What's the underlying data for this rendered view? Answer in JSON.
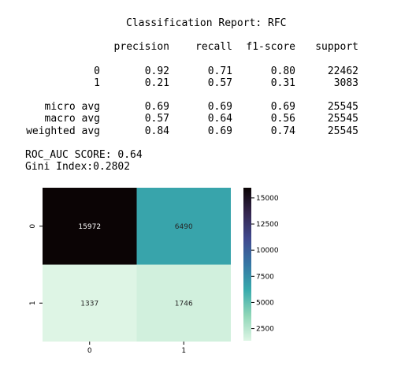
{
  "report": {
    "title": "Classification Report: RFC",
    "columns": [
      "precision",
      "recall",
      "f1-score",
      "support"
    ],
    "rows": [
      {
        "label": "0",
        "cells": [
          "0.92",
          "0.71",
          "0.80",
          "22462"
        ]
      },
      {
        "label": "1",
        "cells": [
          "0.21",
          "0.57",
          "0.31",
          "3083"
        ]
      },
      {
        "label": "micro avg",
        "cells": [
          "0.69",
          "0.69",
          "0.69",
          "25545"
        ]
      },
      {
        "label": "macro avg",
        "cells": [
          "0.57",
          "0.64",
          "0.56",
          "25545"
        ]
      },
      {
        "label": "weighted avg",
        "cells": [
          "0.84",
          "0.69",
          "0.74",
          "25545"
        ]
      }
    ],
    "roc_auc": "ROC_AUC SCORE: 0.64",
    "gini": "Gini Index:0.2802"
  },
  "chart_data": {
    "type": "heatmap",
    "x_categories": [
      "0",
      "1"
    ],
    "y_categories": [
      "0",
      "1"
    ],
    "values": [
      [
        15972,
        6490
      ],
      [
        1337,
        1746
      ]
    ],
    "colorbar": {
      "lim": [
        1337,
        15972
      ],
      "ticks": [
        2500,
        5000,
        7500,
        10000,
        12500,
        15000
      ],
      "colormap": [
        "#def5e5",
        "#8fd6b7",
        "#38aaac",
        "#3576a4",
        "#40498e",
        "#35264f",
        "#0b0405"
      ]
    }
  }
}
